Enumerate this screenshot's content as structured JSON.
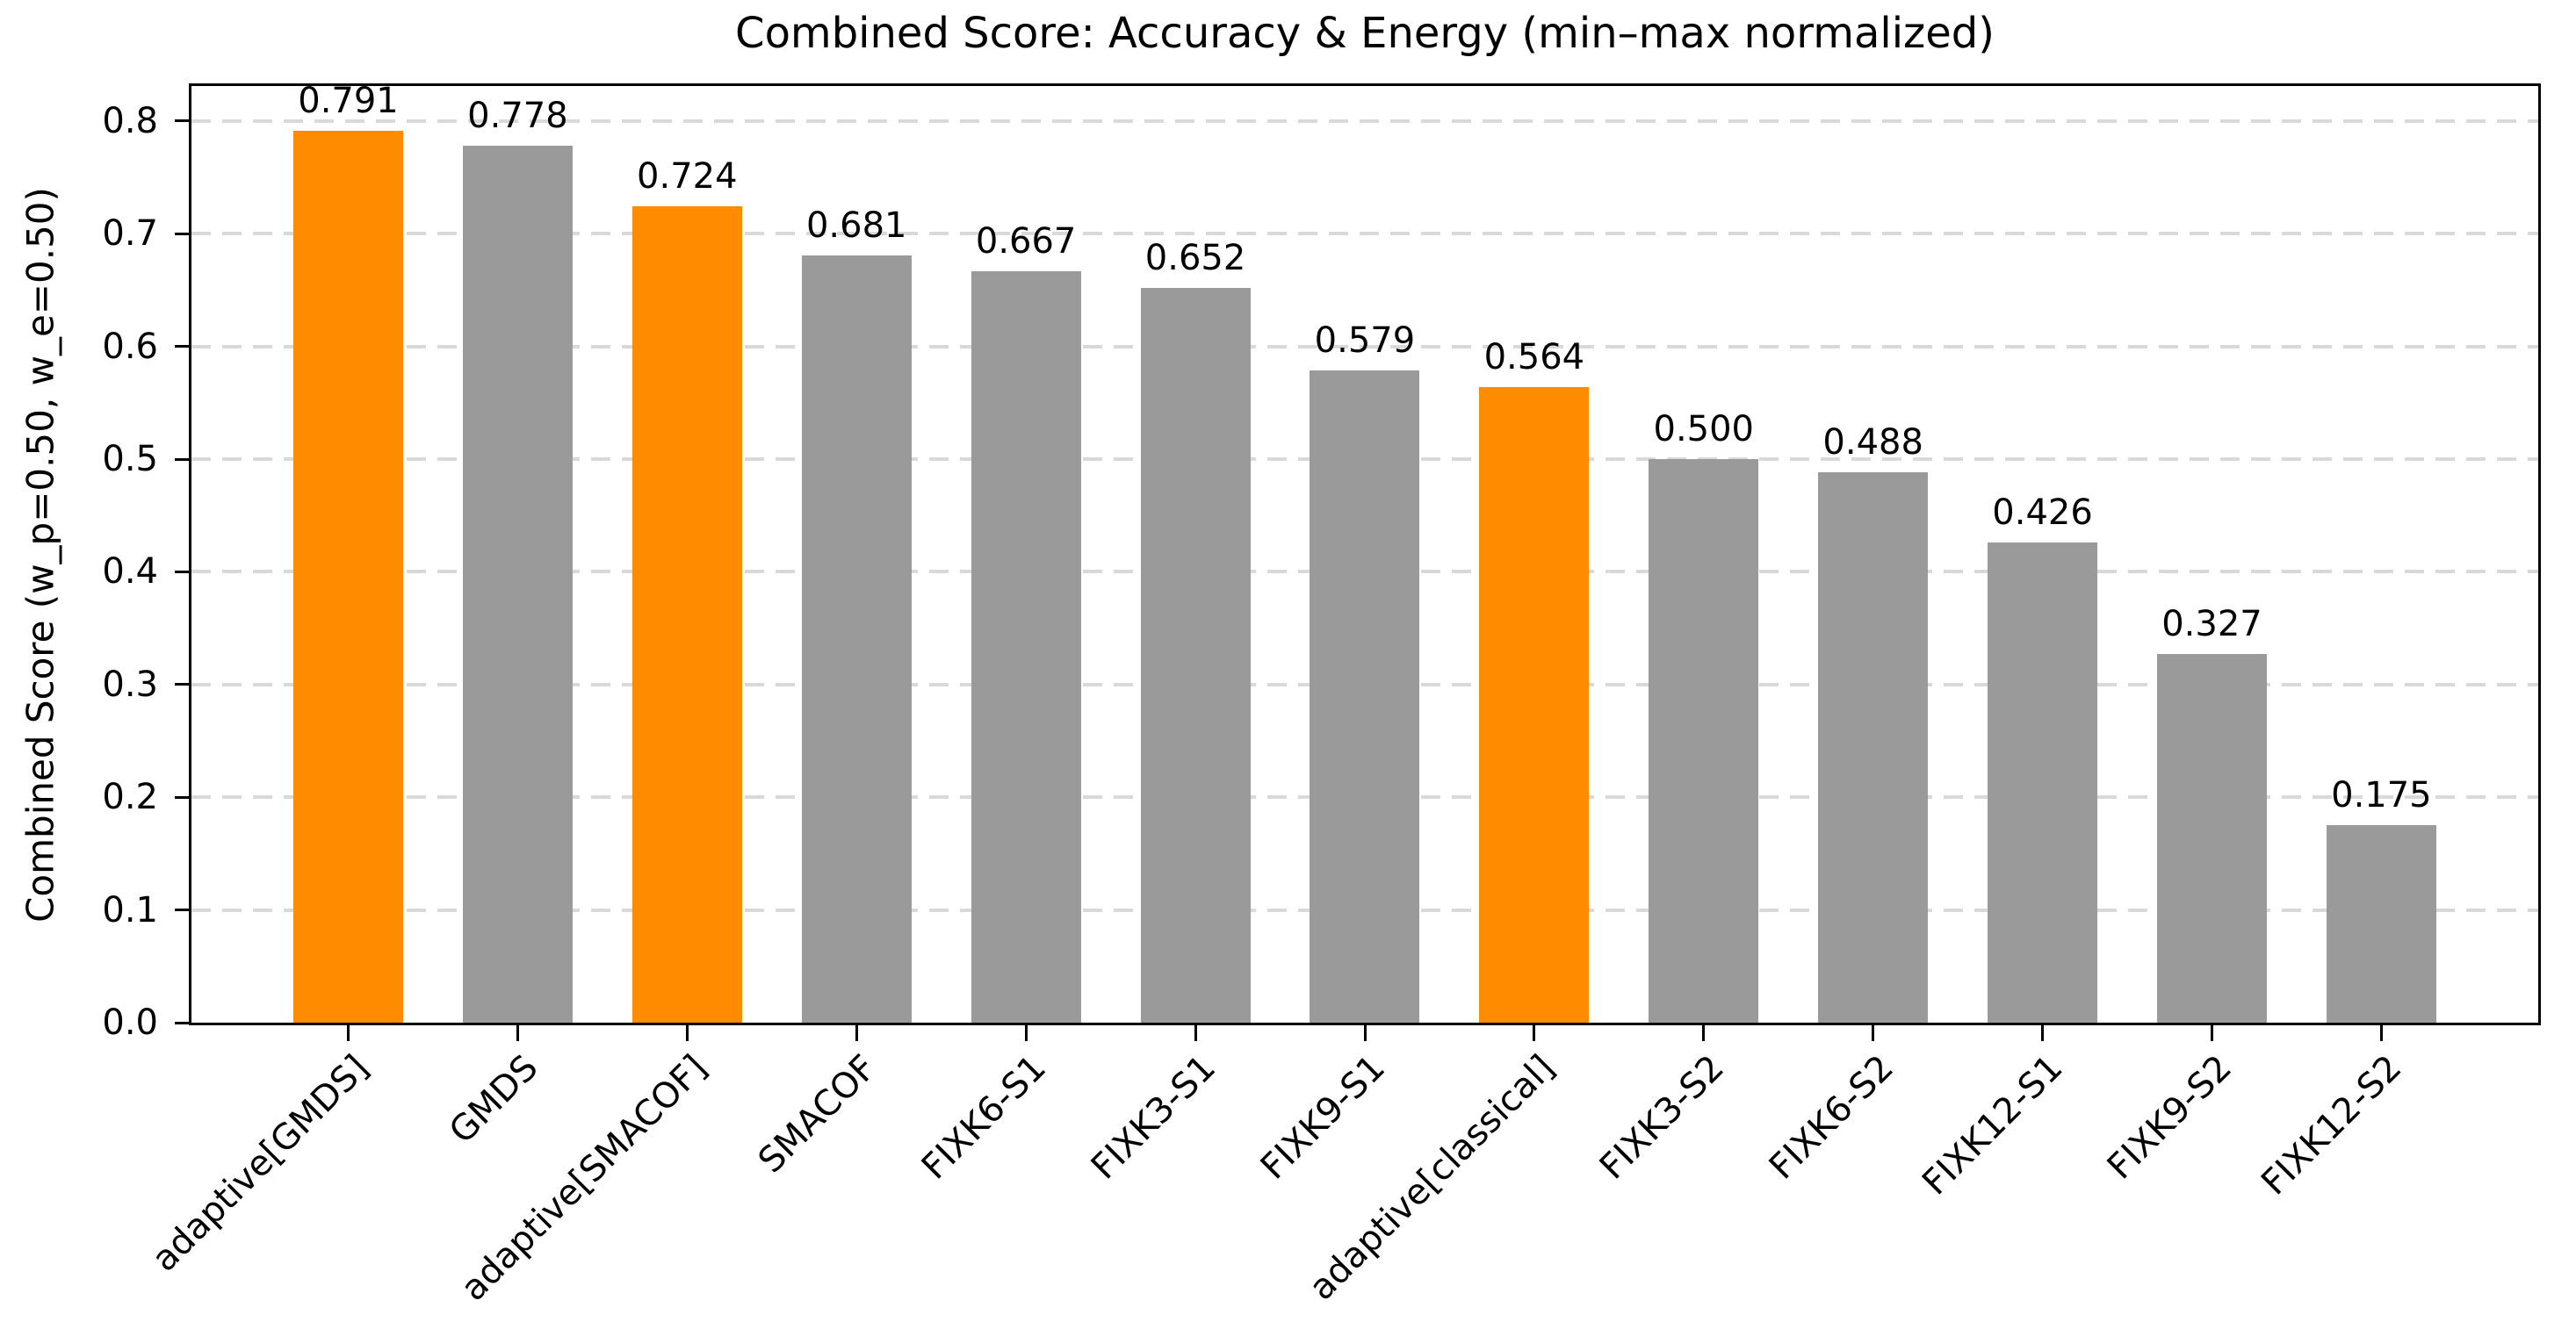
{
  "figure": {
    "background": "#ffffff"
  },
  "chart_data": {
    "type": "bar",
    "title": "Combined Score: Accuracy & Energy (min–max normalized)",
    "ylabel": "Combined Score (w_p=0.50, w_e=0.50)",
    "xlabel": "",
    "categories": [
      "adaptive[GMDS]",
      "GMDS",
      "adaptive[SMACOF]",
      "SMACOF",
      "FIXK6-S1",
      "FIXK3-S1",
      "FIXK9-S1",
      "adaptive[classical]",
      "FIXK3-S2",
      "FIXK6-S2",
      "FIXK12-S1",
      "FIXK9-S2",
      "FIXK12-S2"
    ],
    "values": [
      0.791,
      0.778,
      0.724,
      0.681,
      0.667,
      0.652,
      0.579,
      0.564,
      0.5,
      0.488,
      0.426,
      0.327,
      0.175
    ],
    "value_labels": [
      "0.791",
      "0.778",
      "0.724",
      "0.681",
      "0.667",
      "0.652",
      "0.579",
      "0.564",
      "0.500",
      "0.488",
      "0.426",
      "0.327",
      "0.175"
    ],
    "bar_colors": [
      "#ff8c00",
      "#9a9a9a",
      "#ff8c00",
      "#9a9a9a",
      "#9a9a9a",
      "#9a9a9a",
      "#9a9a9a",
      "#ff8c00",
      "#9a9a9a",
      "#9a9a9a",
      "#9a9a9a",
      "#9a9a9a",
      "#9a9a9a"
    ],
    "highlight_color": "#ff8c00",
    "base_color": "#9a9a9a",
    "ylim": [
      0,
      0.831
    ],
    "ytick_values": [
      0.0,
      0.1,
      0.2,
      0.3,
      0.4,
      0.5,
      0.6,
      0.7,
      0.8
    ],
    "ytick_labels": [
      "0.0",
      "0.1",
      "0.2",
      "0.3",
      "0.4",
      "0.5",
      "0.6",
      "0.7",
      "0.8"
    ],
    "grid": "horizontal-dashed",
    "grid_color": "#d9d9d9",
    "legend": null,
    "x_tick_rotation_deg": 45
  }
}
